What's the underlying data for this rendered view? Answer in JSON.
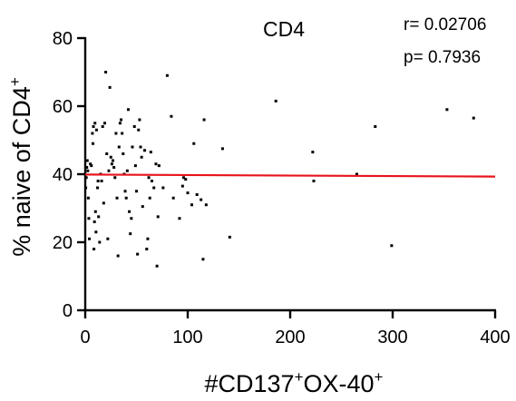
{
  "chart_data": {
    "type": "scatter",
    "title": "CD4",
    "xlabel": {
      "parts": [
        "#CD137",
        "+",
        "OX-40",
        "+"
      ]
    },
    "ylabel": {
      "parts": [
        "% naive of CD4",
        "+"
      ]
    },
    "xlim": [
      0,
      400
    ],
    "ylim": [
      0,
      80
    ],
    "xticks": [
      0,
      100,
      200,
      300,
      400
    ],
    "yticks": [
      0,
      20,
      40,
      60,
      80
    ],
    "stats": {
      "r": "r= 0.02706",
      "p": "p= 0.7936"
    },
    "regression": {
      "x": [
        0,
        400
      ],
      "y": [
        39.9,
        39.3
      ],
      "color": "#e8141b"
    },
    "point_color": "#000000",
    "points": [
      [
        0.5,
        36
      ],
      [
        1,
        39
      ],
      [
        1.5,
        42
      ],
      [
        2,
        44
      ],
      [
        2.5,
        41
      ],
      [
        3,
        33
      ],
      [
        3.5,
        27
      ],
      [
        4,
        21
      ],
      [
        5,
        43
      ],
      [
        6,
        42.5
      ],
      [
        7,
        52
      ],
      [
        7.5,
        49
      ],
      [
        8,
        54
      ],
      [
        8.5,
        18
      ],
      [
        9,
        26
      ],
      [
        9.5,
        55
      ],
      [
        10,
        29
      ],
      [
        10.5,
        23
      ],
      [
        11,
        53
      ],
      [
        12,
        36
      ],
      [
        12.5,
        38
      ],
      [
        13,
        27.5
      ],
      [
        14,
        20
      ],
      [
        15,
        40
      ],
      [
        16,
        38
      ],
      [
        17,
        54
      ],
      [
        18,
        31.5
      ],
      [
        19,
        55
      ],
      [
        20,
        70
      ],
      [
        21,
        46
      ],
      [
        22,
        21
      ],
      [
        23,
        41
      ],
      [
        24,
        65.5
      ],
      [
        25,
        45
      ],
      [
        26,
        43
      ],
      [
        27,
        44
      ],
      [
        28,
        42
      ],
      [
        29,
        39
      ],
      [
        30,
        52
      ],
      [
        31,
        33
      ],
      [
        32,
        16
      ],
      [
        33,
        48
      ],
      [
        34,
        55
      ],
      [
        35,
        56
      ],
      [
        36,
        52
      ],
      [
        37,
        46
      ],
      [
        38,
        40
      ],
      [
        39,
        35
      ],
      [
        40,
        33
      ],
      [
        41,
        41
      ],
      [
        42,
        59
      ],
      [
        43,
        29
      ],
      [
        44,
        22.5
      ],
      [
        45,
        27
      ],
      [
        46,
        48
      ],
      [
        48,
        54
      ],
      [
        49,
        42.5
      ],
      [
        50,
        35
      ],
      [
        51,
        16.5
      ],
      [
        52,
        53
      ],
      [
        53,
        56
      ],
      [
        54,
        48
      ],
      [
        55,
        45
      ],
      [
        56,
        30.5
      ],
      [
        58,
        47
      ],
      [
        60,
        18
      ],
      [
        61,
        21
      ],
      [
        62,
        39
      ],
      [
        63,
        33
      ],
      [
        64,
        46.5
      ],
      [
        65,
        38
      ],
      [
        67,
        36
      ],
      [
        69,
        43
      ],
      [
        70,
        13
      ],
      [
        71,
        27.5
      ],
      [
        72,
        42.5
      ],
      [
        76,
        36
      ],
      [
        80,
        69
      ],
      [
        84,
        57
      ],
      [
        86,
        33
      ],
      [
        92,
        27
      ],
      [
        95,
        36.5
      ],
      [
        96,
        39
      ],
      [
        98,
        38.5
      ],
      [
        100,
        34.5
      ],
      [
        104,
        31
      ],
      [
        106,
        49
      ],
      [
        109,
        34
      ],
      [
        113,
        32.5
      ],
      [
        115,
        15
      ],
      [
        116,
        56
      ],
      [
        118,
        31
      ],
      [
        134,
        47.5
      ],
      [
        141,
        21.5
      ],
      [
        186,
        61.5
      ],
      [
        222,
        46.5
      ],
      [
        223,
        38
      ],
      [
        265,
        40
      ],
      [
        283,
        54
      ],
      [
        299,
        19
      ],
      [
        353,
        59
      ],
      [
        379,
        56.5
      ]
    ]
  }
}
